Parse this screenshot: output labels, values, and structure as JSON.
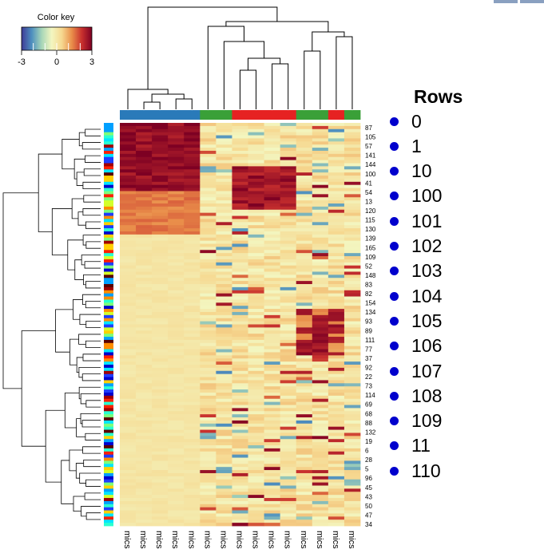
{
  "chart_data": {
    "type": "heatmap",
    "color_key": {
      "title": "Color key",
      "ticks": [
        -3,
        0,
        3
      ],
      "range": [
        -3,
        3
      ],
      "colors": [
        "#3f3b96",
        "#4d8fbf",
        "#a7d6b8",
        "#f3f6c0",
        "#f6d890",
        "#e98e4a",
        "#c8302e",
        "#7d0023"
      ]
    },
    "column_labels": [
      "mics",
      "mics",
      "mics",
      "mics",
      "mics",
      "mics",
      "mics",
      "mics",
      "mics",
      "mics",
      "mics",
      "mics",
      "mics",
      "mics",
      "mics"
    ],
    "column_group_colors": [
      "#2a7ab9",
      "#2a7ab9",
      "#2a7ab9",
      "#2a7ab9",
      "#2a7ab9",
      "#3aa038",
      "#3aa038",
      "#e62222",
      "#e62222",
      "#e62222",
      "#e62222",
      "#3aa038",
      "#3aa038",
      "#e62222",
      "#3aa038"
    ],
    "row_labels": [
      "87",
      "105",
      "57",
      "141",
      "144",
      "100",
      "41",
      "54",
      "13",
      "120",
      "115",
      "130",
      "139",
      "165",
      "109",
      "52",
      "148",
      "83",
      "82",
      "154",
      "134",
      "93",
      "89",
      "111",
      "77",
      "37",
      "92",
      "22",
      "73",
      "114",
      "69",
      "68",
      "88",
      "132",
      "19",
      "6",
      "28",
      "5",
      "96",
      "45",
      "43",
      "50",
      "47",
      "34"
    ],
    "legend": {
      "title": "Rows",
      "items": [
        "0",
        "1",
        "10",
        "100",
        "101",
        "102",
        "103",
        "104",
        "105",
        "106",
        "107",
        "108",
        "109",
        "11",
        "110"
      ],
      "marker_color": "#0000cd"
    }
  }
}
